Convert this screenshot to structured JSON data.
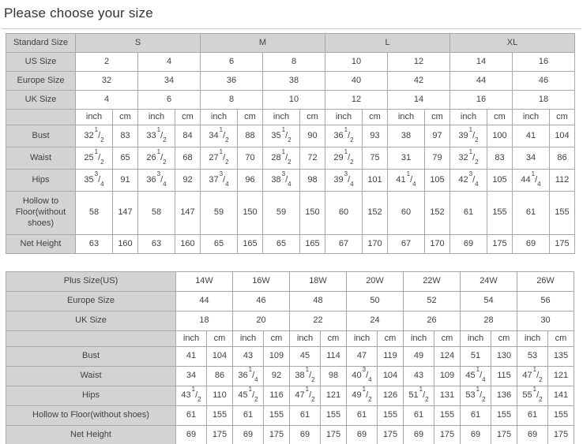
{
  "page": {
    "title": "Please choose your size"
  },
  "colors": {
    "header_bg": "#d3d3d3",
    "grid_border": "#a8a8a8",
    "outer_border": "#898989",
    "text": "#404040",
    "divider": "#c9c9c9",
    "cell_bg": "#ffffff"
  },
  "standard_table": {
    "rows": [
      {
        "label": "Standard Size",
        "span": 4,
        "shaded": true,
        "cells": [
          "S",
          "M",
          "L",
          "XL"
        ]
      },
      {
        "label": "US Size",
        "span": 2,
        "cells": [
          "2",
          "4",
          "6",
          "8",
          "10",
          "12",
          "14",
          "16"
        ]
      },
      {
        "label": "Europe Size",
        "span": 2,
        "cells": [
          "32",
          "34",
          "36",
          "38",
          "40",
          "42",
          "44",
          "46"
        ]
      },
      {
        "label": "UK Size",
        "span": 2,
        "cells": [
          "4",
          "6",
          "8",
          "10",
          "12",
          "14",
          "16",
          "18"
        ]
      },
      {
        "label": "",
        "span": 1,
        "cells": [
          "inch",
          "cm",
          "inch",
          "cm",
          "inch",
          "cm",
          "inch",
          "cm",
          "inch",
          "cm",
          "inch",
          "cm",
          "inch",
          "cm",
          "inch",
          "cm"
        ]
      },
      {
        "label": "Bust",
        "span": 1,
        "cells": [
          "32 1/2",
          "83",
          "33 1/2",
          "84",
          "34 1/2",
          "88",
          "35 1/2",
          "90",
          "36 1/2",
          "93",
          "38",
          "97",
          "39 1/2",
          "100",
          "41",
          "104"
        ]
      },
      {
        "label": "Waist",
        "span": 1,
        "cells": [
          "25 1/2",
          "65",
          "26 1/2",
          "68",
          "27 1/2",
          "70",
          "28 1/2",
          "72",
          "29 1/2",
          "75",
          "31",
          "79",
          "32 1/2",
          "83",
          "34",
          "86"
        ]
      },
      {
        "label": "Hips",
        "span": 1,
        "cells": [
          "35 3/4",
          "91",
          "36 3/4",
          "92",
          "37 3/4",
          "96",
          "38 3/4",
          "98",
          "39 3/4",
          "101",
          "41 1/4",
          "105",
          "42 3/4",
          "105",
          "44 1/4",
          "112"
        ]
      },
      {
        "label": "Hollow to Floor(without shoes)",
        "span": 1,
        "cells": [
          "58",
          "147",
          "58",
          "147",
          "59",
          "150",
          "59",
          "150",
          "60",
          "152",
          "60",
          "152",
          "61",
          "155",
          "61",
          "155"
        ]
      },
      {
        "label": "Net Height",
        "span": 1,
        "cells": [
          "63",
          "160",
          "63",
          "160",
          "65",
          "165",
          "65",
          "165",
          "67",
          "170",
          "67",
          "170",
          "69",
          "175",
          "69",
          "175"
        ]
      }
    ]
  },
  "plus_table": {
    "rows": [
      {
        "label": "Plus Size(US)",
        "span": 2,
        "cells": [
          "14W",
          "16W",
          "18W",
          "20W",
          "22W",
          "24W",
          "26W"
        ]
      },
      {
        "label": "Europe Size",
        "span": 2,
        "cells": [
          "44",
          "46",
          "48",
          "50",
          "52",
          "54",
          "56"
        ]
      },
      {
        "label": "UK Size",
        "span": 2,
        "cells": [
          "18",
          "20",
          "22",
          "24",
          "26",
          "28",
          "30"
        ]
      },
      {
        "label": "",
        "span": 1,
        "cells": [
          "inch",
          "cm",
          "inch",
          "cm",
          "inch",
          "cm",
          "inch",
          "cm",
          "inch",
          "cm",
          "inch",
          "cm",
          "inch",
          "cm"
        ]
      },
      {
        "label": "Bust",
        "span": 1,
        "cells": [
          "41",
          "104",
          "43",
          "109",
          "45",
          "114",
          "47",
          "119",
          "49",
          "124",
          "51",
          "130",
          "53",
          "135"
        ]
      },
      {
        "label": "Waist",
        "span": 1,
        "cells": [
          "34",
          "86",
          "36 1/4",
          "92",
          "38 1/2",
          "98",
          "40 3/4",
          "104",
          "43",
          "109",
          "45 1/4",
          "115",
          "47 1/2",
          "121"
        ]
      },
      {
        "label": "Hips",
        "span": 1,
        "cells": [
          "43 1/2",
          "110",
          "45 1/2",
          "116",
          "47 1/2",
          "121",
          "49 1/2",
          "126",
          "51 1/2",
          "131",
          "53 1/2",
          "136",
          "55 1/2",
          "141"
        ]
      },
      {
        "label": "Hollow to Floor(without shoes)",
        "span": 1,
        "cells": [
          "61",
          "155",
          "61",
          "155",
          "61",
          "155",
          "61",
          "155",
          "61",
          "155",
          "61",
          "155",
          "61",
          "155"
        ]
      },
      {
        "label": "Net Height",
        "span": 1,
        "cells": [
          "69",
          "175",
          "69",
          "175",
          "69",
          "175",
          "69",
          "175",
          "69",
          "175",
          "69",
          "175",
          "69",
          "175"
        ]
      }
    ]
  }
}
